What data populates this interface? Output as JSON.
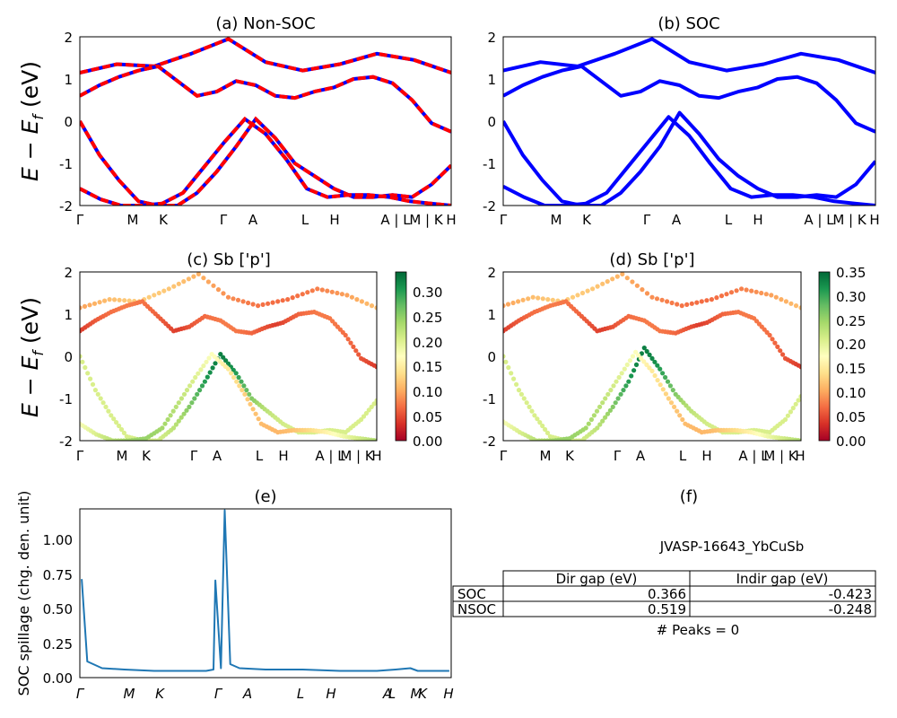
{
  "colors": {
    "band_blue": "#0000ff",
    "band_red": "#ff0000",
    "spill_line": "#1f77b4",
    "cmap_low": "#a50026",
    "cmap_mid": "#ffffbf",
    "cmap_high": "#006837"
  },
  "kpath_labels": [
    "Γ",
    "M",
    "K",
    "Γ",
    "A",
    "L",
    "H",
    "A | L",
    "M | K",
    "H"
  ],
  "spill_kpath_labels": [
    "Γ",
    "M",
    "K",
    "Γ",
    "A",
    "L",
    "H",
    "A",
    "L",
    "M",
    "K",
    "H"
  ],
  "ylabel_energy": "E − E",
  "ylabel_energy_sub": "f",
  "ylabel_energy_unit": " (eV)",
  "chart_data": [
    {
      "type": "line",
      "title": "(a) Non-SOC",
      "ylabel": "E − Ef (eV)",
      "ylim": [
        -2,
        2
      ],
      "yticks": [
        -2,
        -1,
        0,
        1,
        2
      ],
      "xticks": [
        "Γ",
        "M",
        "K",
        "Γ",
        "A",
        "L",
        "H",
        "A | L",
        "M | K",
        "H"
      ],
      "series": [
        {
          "values": [
            1.15,
            1.35,
            1.3,
            1.6,
            1.95,
            1.4,
            1.2,
            1.35,
            1.6,
            1.45,
            1.15
          ]
        },
        {
          "values": [
            0.6,
            0.85,
            1.05,
            1.2,
            1.3,
            0.95,
            0.6,
            0.7,
            0.95,
            0.85,
            0.6,
            0.55,
            0.7,
            0.8,
            1.0,
            1.05,
            0.9,
            0.5,
            -0.05,
            -0.25
          ]
        },
        {
          "values": [
            0.0,
            -0.8,
            -1.4,
            -1.9,
            -2.0,
            -2.0,
            -1.7,
            -1.2,
            -0.6,
            0.05,
            -0.4,
            -1.0,
            -1.3,
            -1.6,
            -1.8,
            -1.8,
            -1.75,
            -1.8,
            -1.5,
            -1.05
          ]
        },
        {
          "values": [
            -1.6,
            -1.85,
            -2.0,
            -2.0,
            -1.95,
            -1.7,
            -1.1,
            -0.5,
            0.05,
            -0.3,
            -0.9,
            -1.6,
            -1.8,
            -1.75,
            -1.75,
            -1.8,
            -1.9,
            -1.95,
            -2.0
          ]
        }
      ]
    },
    {
      "type": "line",
      "title": "(b) SOC",
      "ylim": [
        -2,
        2
      ],
      "yticks": [
        -2,
        -1,
        0,
        1,
        2
      ],
      "xticks": [
        "Γ",
        "M",
        "K",
        "Γ",
        "A",
        "L",
        "H",
        "A | L",
        "M | K",
        "H"
      ],
      "series": [
        {
          "values": [
            1.2,
            1.4,
            1.3,
            1.6,
            1.95,
            1.4,
            1.2,
            1.35,
            1.6,
            1.45,
            1.15
          ]
        },
        {
          "values": [
            0.6,
            0.85,
            1.05,
            1.2,
            1.3,
            0.95,
            0.6,
            0.7,
            0.95,
            0.85,
            0.6,
            0.55,
            0.7,
            0.8,
            1.0,
            1.05,
            0.9,
            0.5,
            -0.05,
            -0.25
          ]
        },
        {
          "values": [
            0.0,
            -0.8,
            -1.4,
            -1.9,
            -2.0,
            -2.0,
            -1.7,
            -1.2,
            -0.6,
            0.2,
            -0.3,
            -0.9,
            -1.3,
            -1.6,
            -1.8,
            -1.8,
            -1.75,
            -1.8,
            -1.5,
            -0.95
          ]
        },
        {
          "values": [
            -1.55,
            -1.8,
            -2.0,
            -2.0,
            -1.95,
            -1.7,
            -1.1,
            -0.5,
            0.1,
            -0.35,
            -1.0,
            -1.6,
            -1.8,
            -1.75,
            -1.75,
            -1.8,
            -1.9,
            -1.95,
            -2.0
          ]
        }
      ]
    },
    {
      "type": "scatter",
      "title": "(c)  Sb ['p']",
      "ylim": [
        -2,
        2
      ],
      "yticks": [
        -2,
        -1,
        0,
        1,
        2
      ],
      "xticks": [
        "Γ",
        "M",
        "K",
        "Γ",
        "A",
        "L",
        "H",
        "A | L",
        "M | K",
        "H"
      ],
      "colorbar": {
        "ticks": [
          "0.00",
          "0.05",
          "0.10",
          "0.15",
          "0.20",
          "0.25",
          "0.30"
        ],
        "max": 0.34
      }
    },
    {
      "type": "scatter",
      "title": "(d) Sb ['p']",
      "ylim": [
        -2,
        2
      ],
      "yticks": [
        -2,
        -1,
        0,
        1,
        2
      ],
      "xticks": [
        "Γ",
        "M",
        "K",
        "Γ",
        "A",
        "L",
        "H",
        "A | L",
        "M | K",
        "H"
      ],
      "colorbar": {
        "ticks": [
          "0.00",
          "0.05",
          "0.10",
          "0.15",
          "0.20",
          "0.25",
          "0.30",
          "0.35"
        ],
        "max": 0.35
      }
    },
    {
      "type": "line",
      "title": "(e)",
      "ylabel": "SOC spillage (chg. den. unit)",
      "ylim": [
        0,
        1.25
      ],
      "yticks": [
        "0.00",
        "0.25",
        "0.50",
        "0.75",
        "1.00"
      ],
      "xticks": [
        "Γ",
        "M",
        "K",
        "Γ",
        "A",
        "L",
        "H",
        "A",
        "L",
        "M",
        "K",
        "H"
      ],
      "series": [
        {
          "values": [
            0.73,
            0.12,
            0.07,
            0.06,
            0.05,
            0.05,
            0.05,
            0.06,
            0.72,
            0.07,
            1.24,
            0.1,
            0.07,
            0.06,
            0.06,
            0.05,
            0.05,
            0.05,
            0.06,
            0.07,
            0.05,
            0.05,
            0.05,
            0.05
          ]
        }
      ]
    },
    {
      "type": "table",
      "title": "(f)",
      "subtitle": "JVASP-16643_YbCuSb",
      "columns": [
        "Dir gap (eV)",
        "Indir gap (eV)"
      ],
      "rows": [
        {
          "label": "SOC",
          "values": [
            "0.366",
            "-0.423"
          ]
        },
        {
          "label": "NSOC",
          "values": [
            "0.519",
            "-0.248"
          ]
        }
      ],
      "footer": "# Peaks = 0"
    }
  ]
}
